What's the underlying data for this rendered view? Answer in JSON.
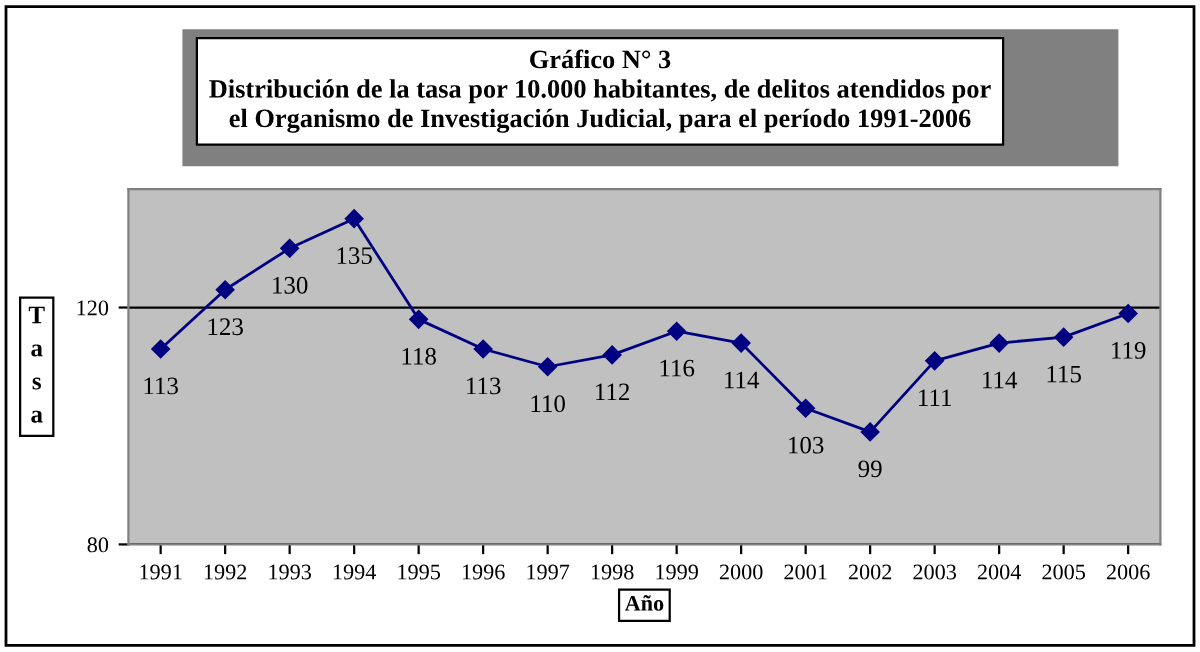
{
  "chart_data": {
    "type": "line",
    "title": "Gráfico N° 3\nDistribución de la tasa por 10.000 habitantes, de delitos atendidos por\nel Organismo de Investigación Judicial, para el período 1991-2006",
    "xlabel": "Año",
    "ylabel": "Tasa",
    "categories": [
      "1991",
      "1992",
      "1993",
      "1994",
      "1995",
      "1996",
      "1997",
      "1998",
      "1999",
      "2000",
      "2001",
      "2002",
      "2003",
      "2004",
      "2005",
      "2006"
    ],
    "series": [
      {
        "color": "#000080",
        "values": [
          113,
          123,
          130,
          135,
          118,
          113,
          110,
          112,
          116,
          114,
          103,
          99,
          111,
          114,
          115,
          119
        ]
      }
    ],
    "ylim": [
      80,
      140
    ],
    "yticks": [
      80,
      120
    ],
    "grid": "y",
    "marker": "diamond",
    "line_style": "solid",
    "data_labels": true
  }
}
